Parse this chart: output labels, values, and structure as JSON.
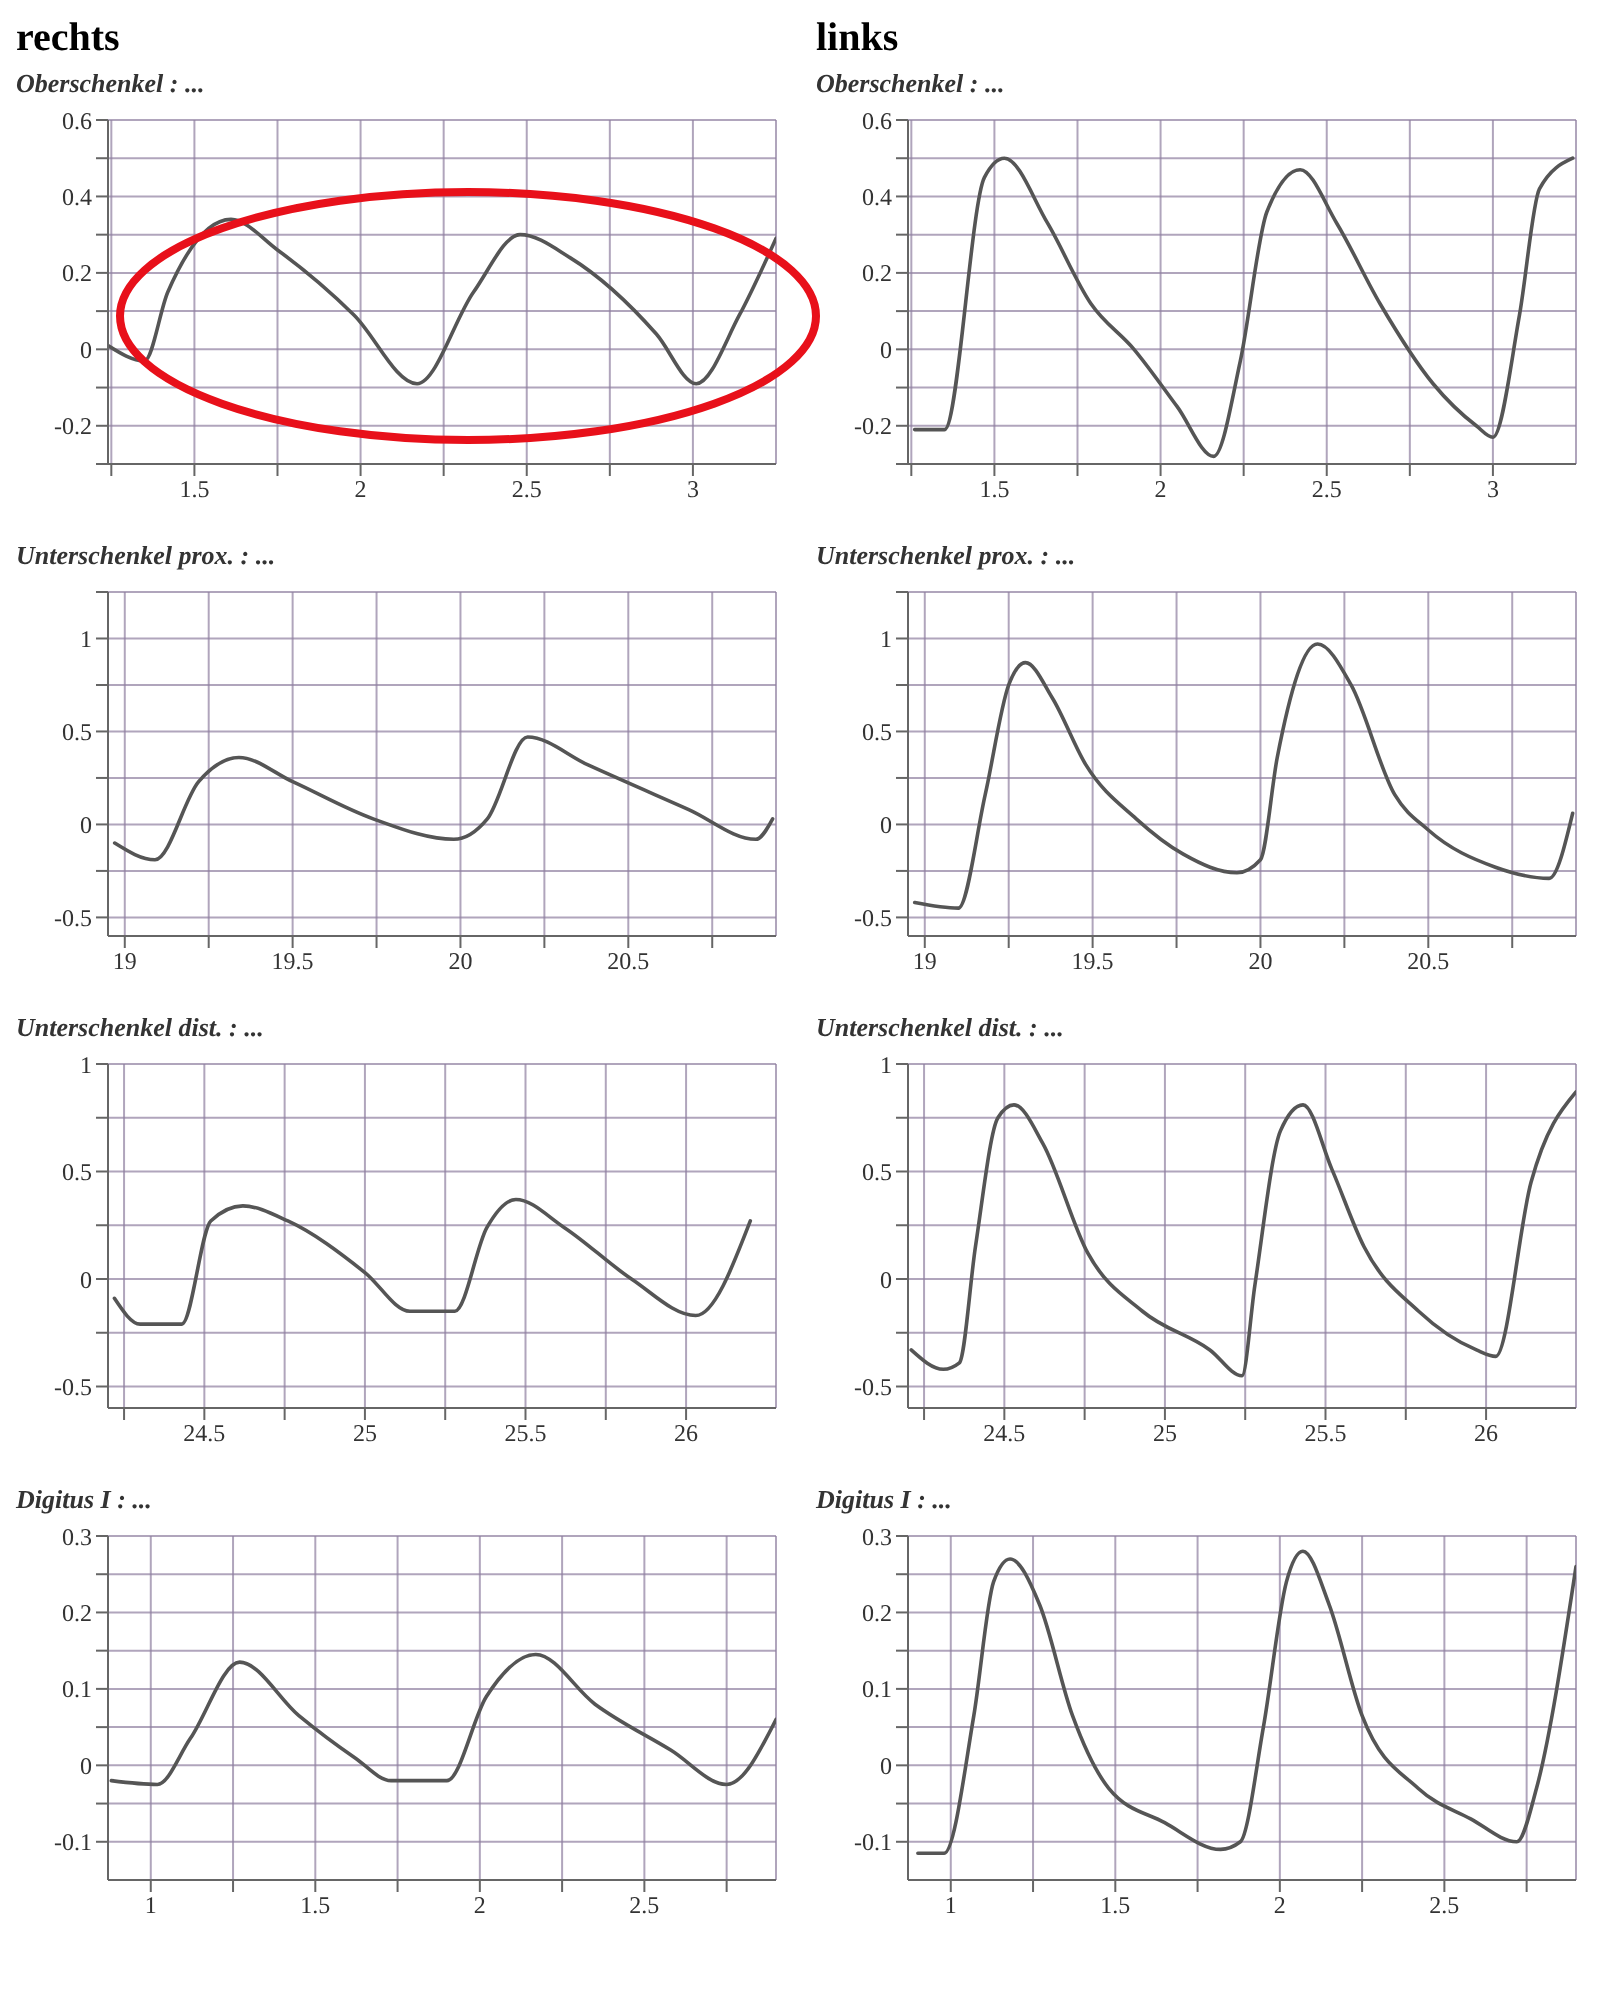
{
  "chart_data": [
    {
      "type": "line",
      "title": "rechts",
      "subtitle": "Oberschenkel : ...",
      "xlim": [
        1.24,
        3.25
      ],
      "xticks": [
        {
          "value": 1.25,
          "label": null
        },
        1.5,
        {
          "value": 1.75,
          "label": null
        },
        2,
        {
          "value": 2.25,
          "label": null
        },
        2.5,
        {
          "value": 2.75,
          "label": null
        },
        3
      ],
      "ylim": [
        -0.3,
        0.6
      ],
      "yticks": [
        {
          "value": -0.3,
          "label": null
        },
        -0.2,
        {
          "value": -0.1,
          "label": null
        },
        0,
        {
          "value": 0.1,
          "label": null
        },
        0.2,
        {
          "value": 0.3,
          "label": null
        },
        0.4,
        {
          "value": 0.5,
          "label": null
        },
        0.6
      ],
      "grid": true,
      "line_style": "solid",
      "series": [
        {
          "color": "#555555",
          "x": [
            1.24,
            1.35,
            1.42,
            1.61,
            1.75,
            1.98,
            2.17,
            2.34,
            2.48,
            2.63,
            2.89,
            3.01,
            3.14,
            3.25
          ],
          "values": [
            0.01,
            -0.03,
            0.15,
            0.34,
            0.26,
            0.09,
            -0.09,
            0.15,
            0.3,
            0.24,
            0.04,
            -0.09,
            0.09,
            0.29
          ]
        }
      ]
    },
    {
      "type": "line",
      "title": "links",
      "subtitle": "Oberschenkel : ...",
      "xlim": [
        1.24,
        3.25
      ],
      "xticks": [
        {
          "value": 1.25,
          "label": null
        },
        1.5,
        {
          "value": 1.75,
          "label": null
        },
        2,
        {
          "value": 2.25,
          "label": null
        },
        2.5,
        {
          "value": 2.75,
          "label": null
        },
        3
      ],
      "ylim": [
        -0.3,
        0.6
      ],
      "yticks": [
        {
          "value": -0.3,
          "label": null
        },
        -0.2,
        {
          "value": -0.1,
          "label": null
        },
        0,
        {
          "value": 0.1,
          "label": null
        },
        0.2,
        {
          "value": 0.3,
          "label": null
        },
        0.4,
        {
          "value": 0.5,
          "label": null
        },
        0.6
      ],
      "grid": true,
      "line_style": "solid",
      "series": [
        {
          "color": "#555555",
          "x": [
            1.26,
            1.35,
            1.47,
            1.53,
            1.66,
            1.79,
            1.92,
            2.05,
            2.16,
            2.24,
            2.32,
            2.42,
            2.53,
            2.66,
            2.82,
            2.95,
            3.0,
            3.08,
            3.14,
            3.24
          ],
          "values": [
            -0.21,
            -0.21,
            0.45,
            0.5,
            0.33,
            0.12,
            0.0,
            -0.15,
            -0.28,
            -0.03,
            0.36,
            0.47,
            0.33,
            0.12,
            -0.09,
            -0.2,
            -0.23,
            0.09,
            0.42,
            0.5
          ]
        }
      ]
    },
    {
      "type": "line",
      "subtitle": "Unterschenkel prox. : ...",
      "xlim": [
        18.95,
        20.94
      ],
      "xticks": [
        19,
        {
          "value": 19.25,
          "label": null
        },
        19.5,
        {
          "value": 19.75,
          "label": null
        },
        20,
        {
          "value": 20.25,
          "label": null
        },
        20.5,
        {
          "value": 20.75,
          "label": null
        }
      ],
      "ylim": [
        -0.6,
        1.25
      ],
      "yticks": [
        -0.5,
        {
          "value": -0.25,
          "label": null
        },
        0,
        {
          "value": 0.25,
          "label": null
        },
        0.5,
        {
          "value": 0.75,
          "label": null
        },
        1,
        {
          "value": 1.25,
          "label": null
        }
      ],
      "grid": true,
      "line_style": "solid",
      "series": [
        {
          "color": "#555555",
          "x": [
            18.97,
            19.09,
            19.22,
            19.34,
            19.5,
            19.74,
            19.98,
            20.08,
            20.2,
            20.38,
            20.68,
            20.88,
            20.93
          ],
          "values": [
            -0.1,
            -0.19,
            0.23,
            0.36,
            0.23,
            0.03,
            -0.08,
            0.03,
            0.47,
            0.32,
            0.08,
            -0.08,
            0.03
          ]
        }
      ]
    },
    {
      "type": "line",
      "subtitle": "Unterschenkel prox. : ...",
      "xlim": [
        18.95,
        20.94
      ],
      "xticks": [
        19,
        {
          "value": 19.25,
          "label": null
        },
        19.5,
        {
          "value": 19.75,
          "label": null
        },
        20,
        {
          "value": 20.25,
          "label": null
        },
        20.5,
        {
          "value": 20.75,
          "label": null
        }
      ],
      "ylim": [
        -0.6,
        1.25
      ],
      "yticks": [
        -0.5,
        {
          "value": -0.25,
          "label": null
        },
        0,
        {
          "value": 0.25,
          "label": null
        },
        0.5,
        {
          "value": 0.75,
          "label": null
        },
        1,
        {
          "value": 1.25,
          "label": null
        }
      ],
      "grid": true,
      "line_style": "solid",
      "series": [
        {
          "color": "#555555",
          "x": [
            18.97,
            19.1,
            19.18,
            19.25,
            19.3,
            19.38,
            19.48,
            19.63,
            19.77,
            19.93,
            20.0,
            20.05,
            20.17,
            20.27,
            20.4,
            20.5,
            20.7,
            20.86,
            20.93
          ],
          "values": [
            -0.42,
            -0.45,
            0.16,
            0.75,
            0.87,
            0.68,
            0.32,
            0.03,
            -0.16,
            -0.26,
            -0.19,
            0.36,
            0.97,
            0.75,
            0.16,
            -0.03,
            -0.23,
            -0.29,
            0.06
          ]
        }
      ]
    },
    {
      "type": "line",
      "subtitle": "Unterschenkel dist. : ...",
      "xlim": [
        24.2,
        26.28
      ],
      "xticks": [
        {
          "value": 24.25,
          "label": null
        },
        24.5,
        {
          "value": 24.75,
          "label": null
        },
        25,
        {
          "value": 25.25,
          "label": null
        },
        25.5,
        {
          "value": 25.75,
          "label": null
        },
        26
      ],
      "ylim": [
        -0.6,
        1
      ],
      "yticks": [
        -0.5,
        {
          "value": -0.25,
          "label": null
        },
        0,
        {
          "value": 0.25,
          "label": null
        },
        0.5,
        {
          "value": 0.75,
          "label": null
        },
        1
      ],
      "grid": true,
      "line_style": "solid",
      "series": [
        {
          "color": "#555555",
          "x": [
            24.22,
            24.3,
            24.43,
            24.52,
            24.62,
            24.76,
            25.0,
            25.14,
            25.28,
            25.38,
            25.47,
            25.62,
            25.83,
            26.03,
            26.2
          ],
          "values": [
            -0.09,
            -0.21,
            -0.21,
            0.27,
            0.34,
            0.27,
            0.03,
            -0.15,
            -0.15,
            0.24,
            0.37,
            0.24,
            0.0,
            -0.17,
            0.27
          ]
        }
      ]
    },
    {
      "type": "line",
      "subtitle": "Unterschenkel dist. : ...",
      "xlim": [
        24.2,
        26.28
      ],
      "xticks": [
        {
          "value": 24.25,
          "label": null
        },
        24.5,
        {
          "value": 24.75,
          "label": null
        },
        25,
        {
          "value": 25.25,
          "label": null
        },
        25.5,
        {
          "value": 25.75,
          "label": null
        },
        26
      ],
      "ylim": [
        -0.6,
        1
      ],
      "yticks": [
        -0.5,
        {
          "value": -0.25,
          "label": null
        },
        0,
        {
          "value": 0.25,
          "label": null
        },
        0.5,
        {
          "value": 0.75,
          "label": null
        },
        1
      ],
      "grid": true,
      "line_style": "solid",
      "series": [
        {
          "color": "#555555",
          "x": [
            24.21,
            24.31,
            24.36,
            24.41,
            24.48,
            24.53,
            24.62,
            24.76,
            24.93,
            25.14,
            25.24,
            25.28,
            25.36,
            25.43,
            25.52,
            25.62,
            25.79,
            25.97,
            26.03,
            26.14,
            26.28
          ],
          "values": [
            -0.33,
            -0.42,
            -0.39,
            0.15,
            0.75,
            0.81,
            0.63,
            0.12,
            -0.15,
            -0.33,
            -0.45,
            -0.03,
            0.69,
            0.81,
            0.51,
            0.15,
            -0.15,
            -0.33,
            -0.36,
            0.45,
            0.87
          ]
        }
      ]
    },
    {
      "type": "line",
      "subtitle": "Digitus I : ...",
      "xlim": [
        0.87,
        2.9
      ],
      "xticks": [
        1,
        {
          "value": 1.25,
          "label": null
        },
        1.5,
        {
          "value": 1.75,
          "label": null
        },
        2,
        {
          "value": 2.25,
          "label": null
        },
        2.5,
        {
          "value": 2.75,
          "label": null
        }
      ],
      "ylim": [
        -0.15,
        0.3
      ],
      "yticks": [
        -0.1,
        {
          "value": -0.05,
          "label": null
        },
        0,
        {
          "value": 0.05,
          "label": null
        },
        0.1,
        {
          "value": 0.15,
          "label": null
        },
        0.2,
        {
          "value": 0.25,
          "label": null
        },
        0.3
      ],
      "grid": true,
      "line_style": "solid",
      "series": [
        {
          "color": "#555555",
          "x": [
            0.88,
            1.02,
            1.12,
            1.27,
            1.45,
            1.62,
            1.73,
            1.9,
            2.02,
            2.17,
            2.35,
            2.58,
            2.75,
            2.9
          ],
          "values": [
            -0.02,
            -0.025,
            0.035,
            0.135,
            0.065,
            0.01,
            -0.02,
            -0.02,
            0.09,
            0.145,
            0.08,
            0.02,
            -0.025,
            0.06
          ]
        }
      ]
    },
    {
      "type": "line",
      "subtitle": "Digitus I : ...",
      "xlim": [
        0.87,
        2.9
      ],
      "xticks": [
        1,
        {
          "value": 1.25,
          "label": null
        },
        1.5,
        {
          "value": 1.75,
          "label": null
        },
        2,
        {
          "value": 2.25,
          "label": null
        },
        2.5,
        {
          "value": 2.75,
          "label": null
        }
      ],
      "ylim": [
        -0.15,
        0.3
      ],
      "yticks": [
        -0.1,
        {
          "value": -0.05,
          "label": null
        },
        0,
        {
          "value": 0.05,
          "label": null
        },
        0.1,
        {
          "value": 0.15,
          "label": null
        },
        0.2,
        {
          "value": 0.25,
          "label": null
        },
        0.3
      ],
      "grid": true,
      "line_style": "solid",
      "series": [
        {
          "color": "#555555",
          "x": [
            0.9,
            0.98,
            1.07,
            1.13,
            1.18,
            1.27,
            1.37,
            1.48,
            1.65,
            1.82,
            1.88,
            1.95,
            2.02,
            2.07,
            2.15,
            2.25,
            2.42,
            2.58,
            2.72,
            2.78,
            2.9
          ],
          "values": [
            -0.115,
            -0.115,
            0.065,
            0.24,
            0.27,
            0.21,
            0.065,
            -0.03,
            -0.075,
            -0.11,
            -0.1,
            0.05,
            0.24,
            0.28,
            0.21,
            0.065,
            -0.03,
            -0.07,
            -0.1,
            -0.03,
            0.26
          ]
        }
      ]
    }
  ]
}
